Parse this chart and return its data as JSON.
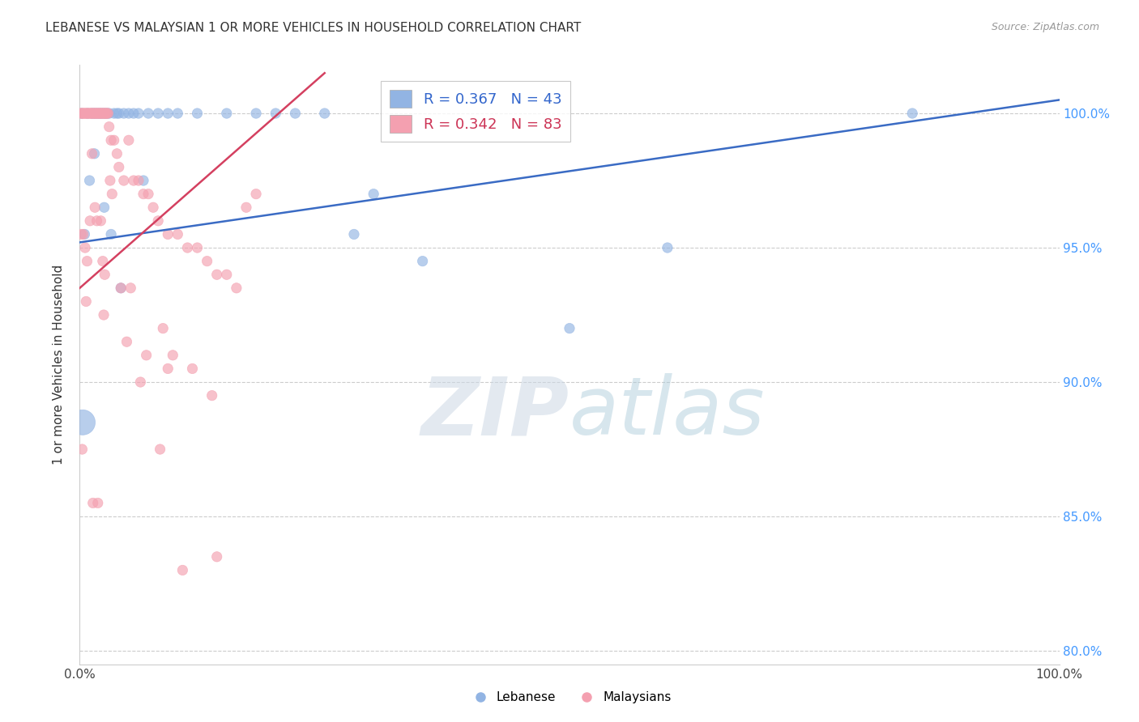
{
  "title": "LEBANESE VS MALAYSIAN 1 OR MORE VEHICLES IN HOUSEHOLD CORRELATION CHART",
  "source": "Source: ZipAtlas.com",
  "ylabel": "1 or more Vehicles in Household",
  "xlim": [
    0.0,
    100.0
  ],
  "ylim": [
    79.5,
    101.8
  ],
  "yticks": [
    80.0,
    85.0,
    90.0,
    95.0,
    100.0
  ],
  "xticks": [
    0.0,
    10.0,
    20.0,
    30.0,
    40.0,
    50.0,
    60.0,
    70.0,
    80.0,
    90.0,
    100.0
  ],
  "xtick_labels": [
    "0.0%",
    "",
    "",
    "",
    "",
    "",
    "",
    "",
    "",
    "",
    "100.0%"
  ],
  "ytick_labels": [
    "80.0%",
    "85.0%",
    "90.0%",
    "95.0%",
    "100.0%"
  ],
  "legend_r_blue": "R = 0.367",
  "legend_n_blue": "N = 43",
  "legend_r_pink": "R = 0.342",
  "legend_n_pink": "N = 83",
  "blue_color": "#92b4e3",
  "pink_color": "#f4a0b0",
  "trend_blue_color": "#3a6bc4",
  "trend_pink_color": "#d44060",
  "blue_trend_x": [
    0.0,
    100.0
  ],
  "blue_trend_y": [
    95.2,
    100.5
  ],
  "pink_trend_x": [
    0.0,
    25.0
  ],
  "pink_trend_y": [
    93.5,
    101.5
  ],
  "blue_scatter_x": [
    0.5,
    0.8,
    1.0,
    1.2,
    1.4,
    1.6,
    1.8,
    2.0,
    2.2,
    2.4,
    2.6,
    2.8,
    3.0,
    3.5,
    4.0,
    4.5,
    5.0,
    5.5,
    6.0,
    7.0,
    8.0,
    9.0,
    10.0,
    12.0,
    15.0,
    18.0,
    20.0,
    25.0,
    28.0,
    30.0,
    0.3,
    2.5,
    3.2,
    4.2,
    6.5,
    60.0,
    85.0,
    0.2,
    1.5,
    3.8,
    22.0,
    35.0,
    50.0
  ],
  "blue_scatter_y": [
    95.5,
    100.0,
    97.5,
    100.0,
    100.0,
    100.0,
    100.0,
    100.0,
    100.0,
    100.0,
    100.0,
    100.0,
    100.0,
    100.0,
    100.0,
    100.0,
    100.0,
    100.0,
    100.0,
    100.0,
    100.0,
    100.0,
    100.0,
    100.0,
    100.0,
    100.0,
    100.0,
    100.0,
    95.5,
    97.0,
    88.5,
    96.5,
    95.5,
    93.5,
    97.5,
    95.0,
    100.0,
    100.0,
    98.5,
    100.0,
    100.0,
    94.5,
    92.0
  ],
  "blue_scatter_s": [
    80,
    80,
    80,
    80,
    80,
    80,
    80,
    80,
    80,
    80,
    80,
    80,
    80,
    80,
    80,
    80,
    80,
    80,
    80,
    80,
    80,
    80,
    80,
    80,
    80,
    80,
    80,
    80,
    80,
    80,
    500,
    80,
    80,
    80,
    80,
    80,
    80,
    80,
    80,
    80,
    80,
    80,
    80
  ],
  "pink_scatter_x": [
    0.1,
    0.2,
    0.3,
    0.4,
    0.5,
    0.6,
    0.7,
    0.8,
    0.9,
    1.0,
    1.1,
    1.2,
    1.3,
    1.4,
    1.5,
    1.6,
    1.7,
    1.8,
    1.9,
    2.0,
    2.1,
    2.2,
    2.3,
    2.4,
    2.5,
    2.6,
    2.7,
    2.8,
    2.9,
    3.0,
    3.2,
    3.5,
    3.8,
    4.0,
    4.5,
    5.0,
    5.5,
    6.0,
    6.5,
    7.0,
    7.5,
    8.0,
    9.0,
    10.0,
    11.0,
    12.0,
    13.0,
    14.0,
    15.0,
    16.0,
    17.0,
    18.0,
    3.3,
    4.2,
    5.2,
    6.8,
    8.5,
    9.5,
    11.5,
    0.35,
    0.55,
    0.75,
    1.25,
    1.55,
    2.15,
    2.35,
    2.55,
    3.1,
    4.8,
    6.2,
    8.2,
    10.5,
    14.0,
    0.15,
    1.05,
    1.35,
    1.85,
    2.45,
    9.0,
    13.5,
    0.25,
    0.65,
    1.75
  ],
  "pink_scatter_y": [
    100.0,
    100.0,
    100.0,
    100.0,
    100.0,
    100.0,
    100.0,
    100.0,
    100.0,
    100.0,
    100.0,
    100.0,
    100.0,
    100.0,
    100.0,
    100.0,
    100.0,
    100.0,
    100.0,
    100.0,
    100.0,
    100.0,
    100.0,
    100.0,
    100.0,
    100.0,
    100.0,
    100.0,
    100.0,
    99.5,
    99.0,
    99.0,
    98.5,
    98.0,
    97.5,
    99.0,
    97.5,
    97.5,
    97.0,
    97.0,
    96.5,
    96.0,
    95.5,
    95.5,
    95.0,
    95.0,
    94.5,
    94.0,
    94.0,
    93.5,
    96.5,
    97.0,
    97.0,
    93.5,
    93.5,
    91.0,
    92.0,
    91.0,
    90.5,
    95.5,
    95.0,
    94.5,
    98.5,
    96.5,
    96.0,
    94.5,
    94.0,
    97.5,
    91.5,
    90.0,
    87.5,
    83.0,
    83.5,
    95.5,
    96.0,
    85.5,
    85.5,
    92.5,
    90.5,
    89.5,
    87.5,
    93.0,
    96.0
  ],
  "pink_scatter_s": [
    80,
    80,
    80,
    80,
    80,
    80,
    80,
    80,
    80,
    80,
    80,
    80,
    80,
    80,
    80,
    80,
    80,
    80,
    80,
    80,
    80,
    80,
    80,
    80,
    80,
    80,
    80,
    80,
    80,
    80,
    80,
    80,
    80,
    80,
    80,
    80,
    80,
    80,
    80,
    80,
    80,
    80,
    80,
    80,
    80,
    80,
    80,
    80,
    80,
    80,
    80,
    80,
    80,
    80,
    80,
    80,
    80,
    80,
    80,
    80,
    80,
    80,
    80,
    80,
    80,
    80,
    80,
    80,
    80,
    80,
    80,
    80,
    80,
    80,
    80,
    80,
    80,
    80,
    80,
    80,
    80,
    80,
    80
  ]
}
